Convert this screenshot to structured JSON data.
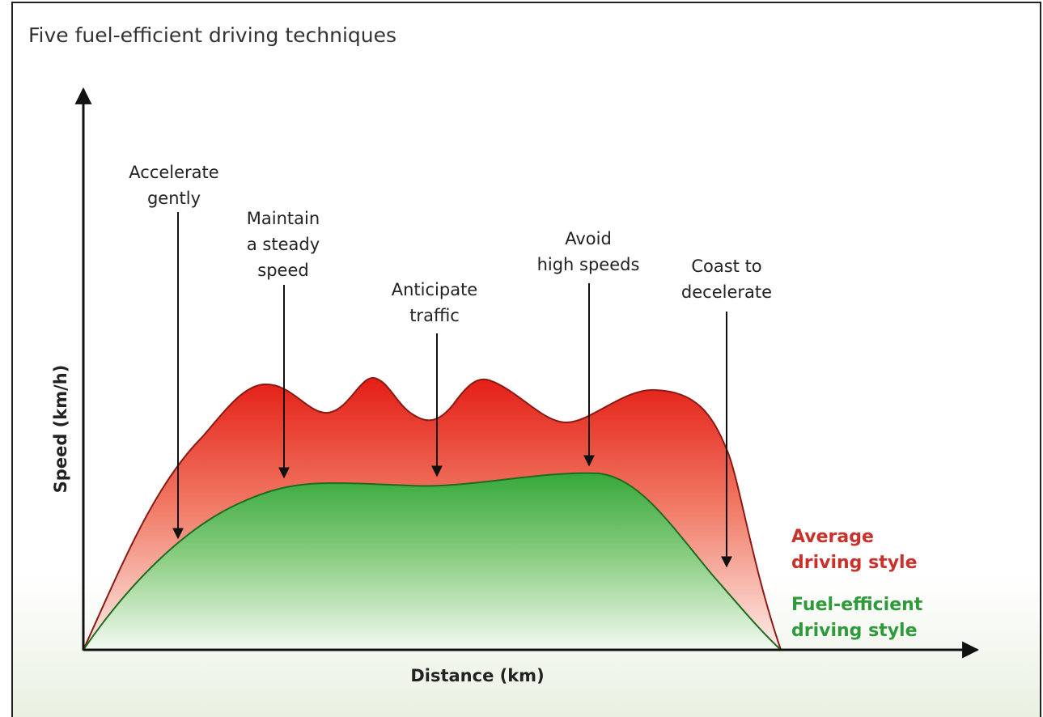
{
  "title": "Five fuel-efficient driving techniques",
  "y_axis_label": "Speed (km/h)",
  "x_axis_label": "Distance (km)",
  "annotations": [
    {
      "lines": [
        "Accelerate",
        "gently"
      ]
    },
    {
      "lines": [
        "Maintain",
        "a steady",
        "speed"
      ]
    },
    {
      "lines": [
        "Anticipate",
        "traffic"
      ]
    },
    {
      "lines": [
        "Avoid",
        "high speeds"
      ]
    },
    {
      "lines": [
        "Coast to",
        "decelerate"
      ]
    }
  ],
  "legend": [
    {
      "lines": [
        "Average",
        "driving style"
      ],
      "color": "#c8322b"
    },
    {
      "lines": [
        "Fuel-efficient",
        "driving style"
      ],
      "color": "#2e9a3a"
    }
  ]
}
